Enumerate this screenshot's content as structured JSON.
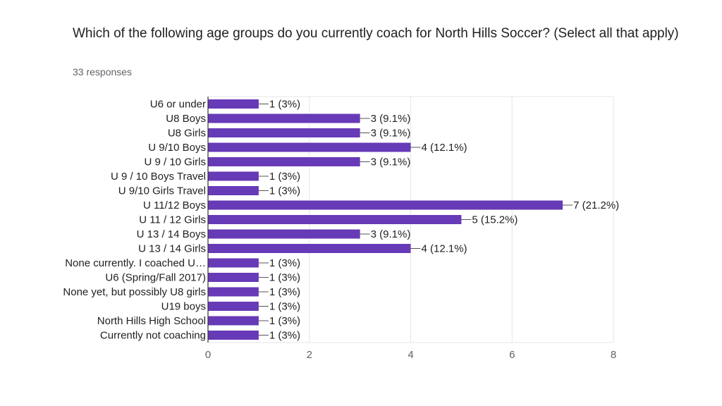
{
  "question": {
    "title": "Which of the following age groups do you currently coach for North Hills Soccer? (Select all that apply)",
    "responses": "33 responses"
  },
  "colors": {
    "bar": "#673ab7",
    "grid": "#e6e6e6",
    "axis": "#333333"
  },
  "chart_data": {
    "type": "bar",
    "orientation": "horizontal",
    "categories": [
      "U6 or under",
      "U8 Boys",
      "U8 Girls",
      "U 9/10 Boys",
      "U 9 / 10 Girls",
      "U 9 / 10 Boys Travel",
      "U 9/10 Girls Travel",
      "U 11/12 Boys",
      "U 11 / 12 Girls",
      "U 13 / 14 Boys",
      "U 13 / 14 Girls",
      "None currently. I coached U…",
      "U6 (Spring/Fall 2017)",
      "None yet, but possibly U8 girls",
      "U19 boys",
      "North Hills High School",
      "Currently not coaching"
    ],
    "values": [
      1,
      3,
      3,
      4,
      3,
      1,
      1,
      7,
      5,
      3,
      4,
      1,
      1,
      1,
      1,
      1,
      1
    ],
    "data_labels": [
      "1 (3%)",
      "3 (9.1%)",
      "3 (9.1%)",
      "4 (12.1%)",
      "3 (9.1%)",
      "1 (3%)",
      "1 (3%)",
      "7 (21.2%)",
      "5 (15.2%)",
      "3 (9.1%)",
      "4 (12.1%)",
      "1 (3%)",
      "1 (3%)",
      "1 (3%)",
      "1 (3%)",
      "1 (3%)",
      "1 (3%)"
    ],
    "xlim": [
      0,
      8
    ],
    "xticks": [
      "0",
      "2",
      "4",
      "6",
      "8"
    ],
    "grid": true
  }
}
